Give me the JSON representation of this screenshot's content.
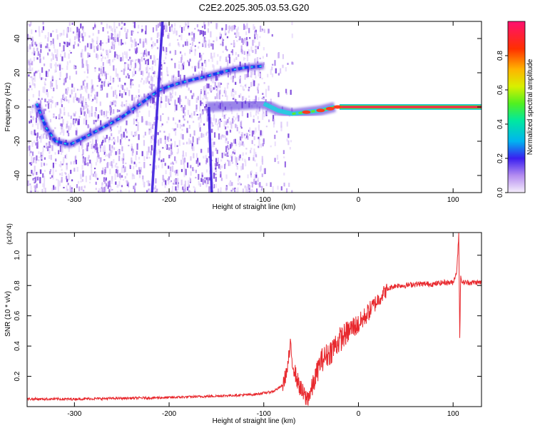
{
  "title": "C2E2.2025.305.03.53.G20",
  "chart_data": [
    {
      "type": "heatmap",
      "xlabel": "Height of straight line (km)",
      "ylabel": "Frequency (Hz)",
      "xlim": [
        -350,
        130
      ],
      "ylim": [
        -50,
        50
      ],
      "xticks": [
        -300,
        -200,
        -100,
        0,
        100
      ],
      "yticks": [
        -40,
        -20,
        0,
        20,
        40
      ],
      "grid": false,
      "colorbar": {
        "label": "Normalized spectral amplitude",
        "range": [
          0,
          1
        ],
        "ticks": [
          "0.0",
          "0.2",
          "0.4",
          "0.6",
          "0.8"
        ]
      },
      "features": [
        {
          "kind": "curved-ridge",
          "points": [
            [
              -340,
              2
            ],
            [
              -330,
              -12
            ],
            [
              -320,
              -20
            ],
            [
              -305,
              -22
            ],
            [
              -290,
              -18
            ],
            [
              -270,
              -12
            ],
            [
              -250,
              -6
            ],
            [
              -230,
              2
            ],
            [
              -210,
              10
            ],
            [
              -195,
              13
            ],
            [
              -175,
              16
            ],
            [
              -160,
              18
            ],
            [
              -140,
              21
            ],
            [
              -120,
              23
            ],
            [
              -100,
              24
            ]
          ]
        },
        {
          "kind": "central-ridge",
          "points": [
            [
              -160,
              0
            ],
            [
              -130,
              1
            ],
            [
              -100,
              2
            ],
            [
              -85,
              -2
            ],
            [
              -70,
              -4
            ],
            [
              -55,
              -3
            ],
            [
              -40,
              -2
            ],
            [
              -25,
              0
            ],
            [
              -10,
              1
            ],
            [
              0,
              0
            ],
            [
              130,
              0
            ]
          ]
        },
        {
          "kind": "steep-line",
          "points": [
            [
              -207,
              50
            ],
            [
              -218,
              -50
            ]
          ]
        },
        {
          "kind": "steep-line",
          "points": [
            [
              -155,
              -50
            ],
            [
              -158,
              0
            ]
          ]
        }
      ]
    },
    {
      "type": "line",
      "xlabel": "Height of straight line (km)",
      "ylabel": "SNR (10 * v/v)",
      "y_multiplier": "(x10^4)",
      "xlim": [
        -350,
        130
      ],
      "ylim": [
        0,
        1.15
      ],
      "xticks": [
        -300,
        -200,
        -100,
        0,
        100
      ],
      "yticks": [
        0.2,
        0.4,
        0.6,
        0.8,
        1.0
      ],
      "grid": false,
      "series": [
        {
          "color": "#e8282d",
          "x": [
            -350,
            -300,
            -250,
            -200,
            -150,
            -110,
            -90,
            -80,
            -75,
            -72,
            -70,
            -65,
            -60,
            -55,
            -50,
            -45,
            -40,
            -35,
            -30,
            -25,
            -20,
            -15,
            -10,
            -5,
            0,
            5,
            10,
            15,
            20,
            25,
            30,
            35,
            40,
            50,
            60,
            70,
            80,
            90,
            100,
            104,
            106,
            107,
            108,
            110,
            120,
            130
          ],
          "y": [
            0.05,
            0.05,
            0.055,
            0.06,
            0.07,
            0.08,
            0.1,
            0.14,
            0.25,
            0.4,
            0.3,
            0.18,
            0.1,
            0.05,
            0.1,
            0.2,
            0.3,
            0.33,
            0.36,
            0.4,
            0.44,
            0.47,
            0.5,
            0.53,
            0.54,
            0.58,
            0.62,
            0.66,
            0.7,
            0.74,
            0.77,
            0.79,
            0.8,
            0.8,
            0.81,
            0.81,
            0.81,
            0.82,
            0.82,
            0.9,
            1.15,
            0.45,
            0.85,
            0.82,
            0.82,
            0.82
          ]
        }
      ]
    }
  ]
}
